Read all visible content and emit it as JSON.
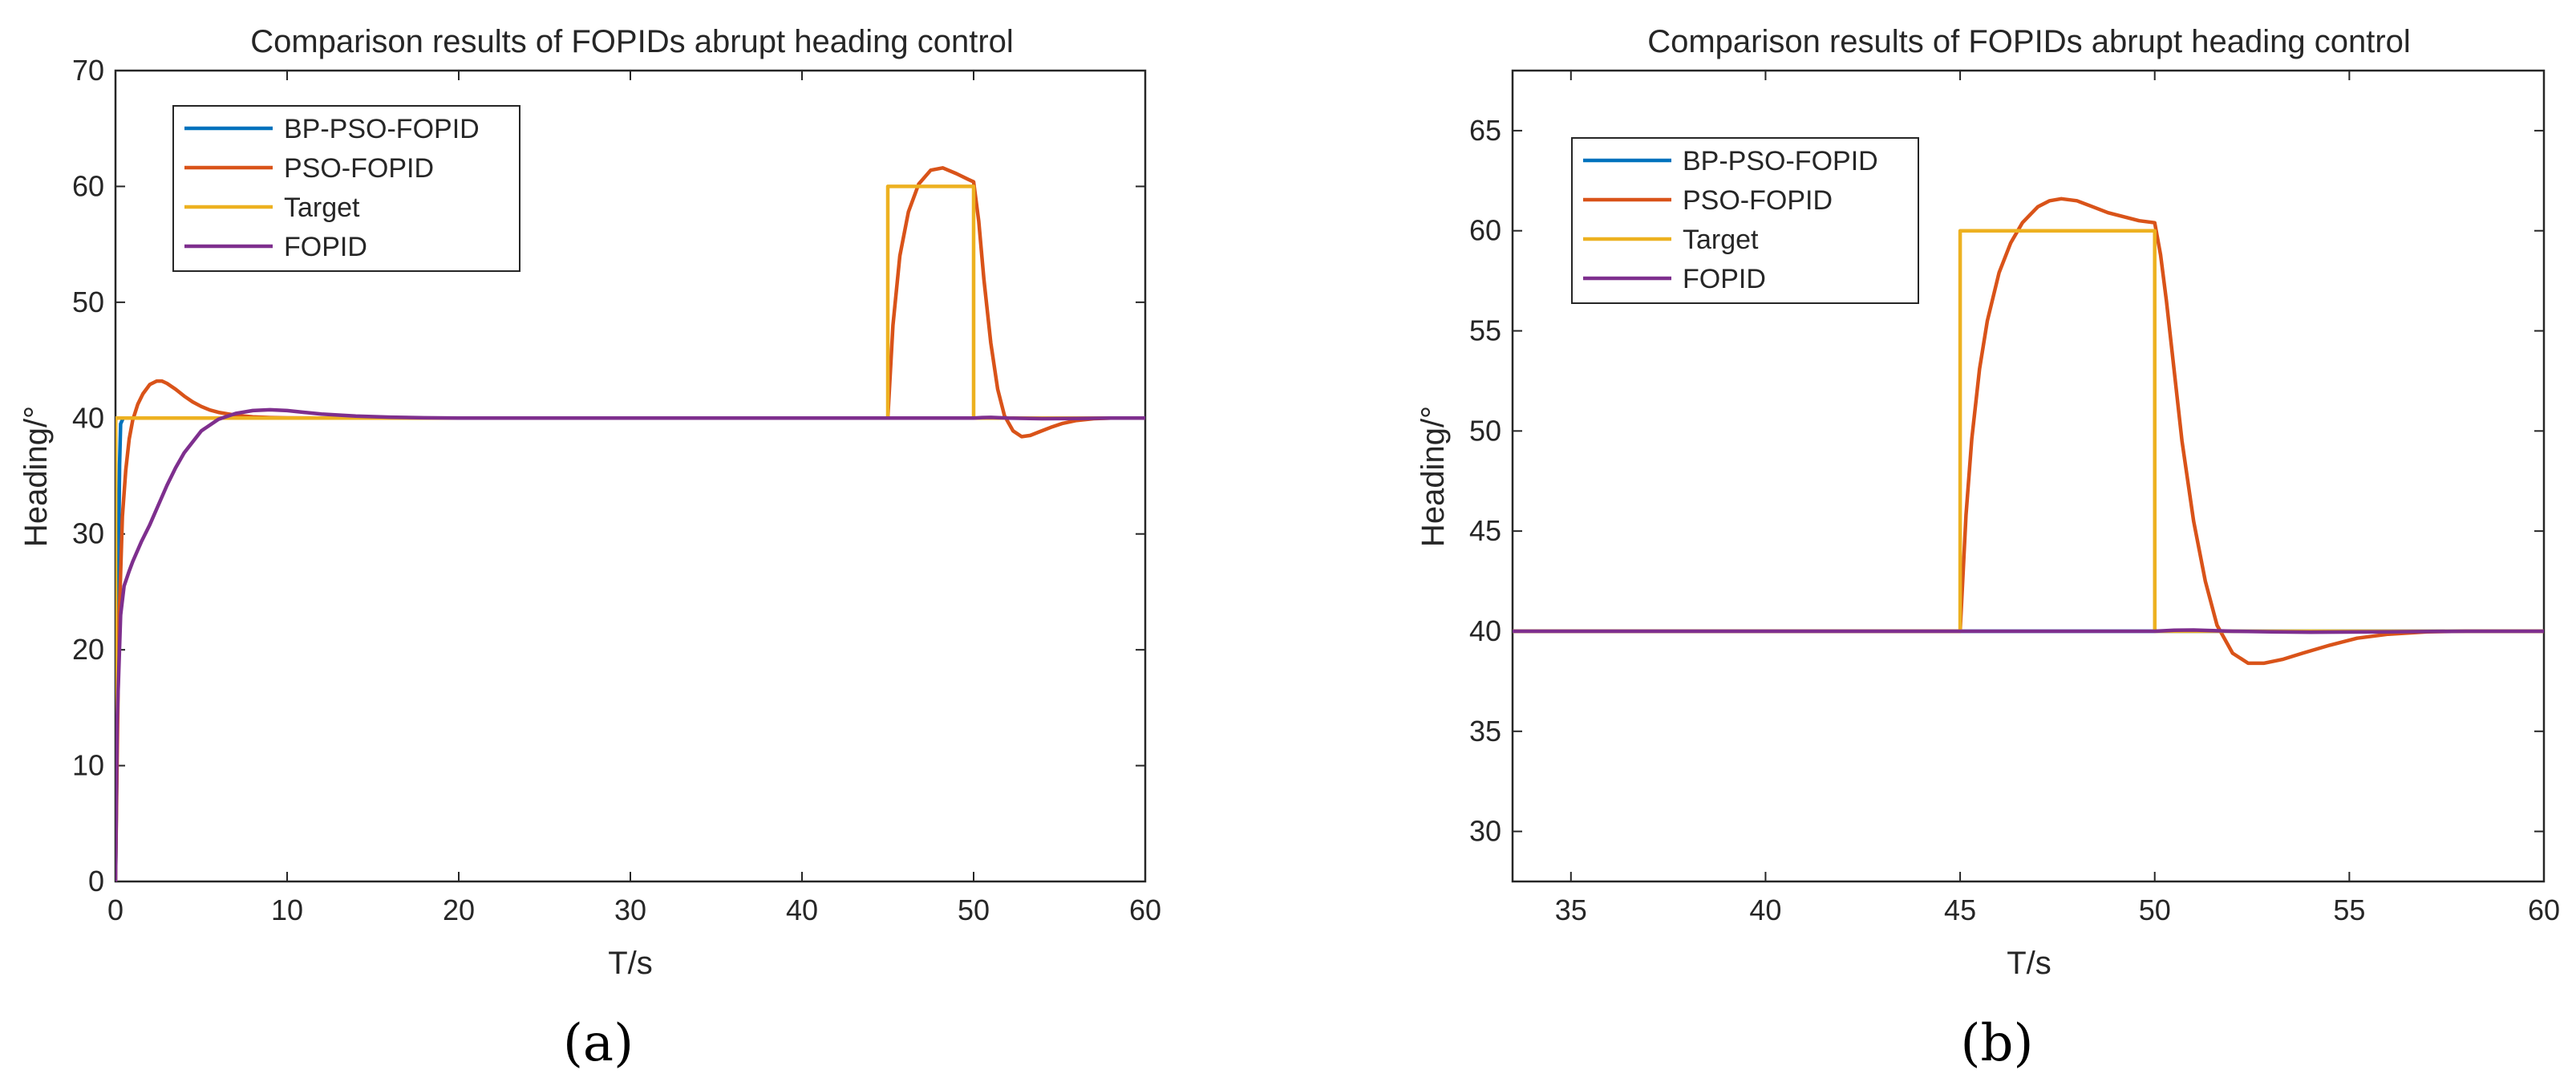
{
  "chart_data": [
    {
      "type": "line",
      "panel_label": "(a)",
      "title": "Comparison results of FOPIDs abrupt heading control",
      "xlabel": "T/s",
      "ylabel": "Heading/°",
      "xlim": [
        0,
        60
      ],
      "ylim": [
        0,
        70
      ],
      "xticks": [
        0,
        10,
        20,
        30,
        40,
        50,
        60
      ],
      "yticks": [
        0,
        10,
        20,
        30,
        40,
        50,
        60,
        70
      ],
      "grid": false,
      "legend_position": "top-left",
      "series": [
        {
          "name": "BP-PSO-FOPID",
          "color": "#0072BD",
          "x": [
            0,
            0.08,
            0.16,
            0.24,
            0.3,
            0.45,
            60
          ],
          "y": [
            0,
            10,
            25,
            36,
            39.5,
            40,
            40
          ]
        },
        {
          "name": "PSO-FOPID",
          "color": "#D95319",
          "x": [
            0,
            0.2,
            0.4,
            0.6,
            0.8,
            1.0,
            1.3,
            1.6,
            2.0,
            2.4,
            2.7,
            3.0,
            3.5,
            4.0,
            4.5,
            5.0,
            5.5,
            6.0,
            7,
            8,
            9,
            10,
            12,
            15,
            20,
            25,
            30,
            35,
            40,
            44.9,
            45,
            45.3,
            45.7,
            46.2,
            46.8,
            47.5,
            48.2,
            49.0,
            49.7,
            50,
            50.3,
            50.6,
            51.0,
            51.4,
            51.8,
            52.3,
            52.8,
            53.3,
            53.8,
            54.5,
            55.2,
            56,
            57,
            58,
            59,
            60
          ],
          "y": [
            0,
            22,
            31.5,
            35.5,
            38.2,
            39.8,
            41.2,
            42.1,
            42.9,
            43.2,
            43.2,
            43,
            42.5,
            41.9,
            41.4,
            41,
            40.7,
            40.5,
            40.25,
            40.1,
            40.05,
            40.02,
            40,
            40,
            40,
            40,
            40,
            40,
            40,
            40,
            40,
            48,
            54,
            57.8,
            60.2,
            61.4,
            61.6,
            61.1,
            60.6,
            60.4,
            57,
            52,
            46.5,
            42.5,
            40.2,
            38.9,
            38.4,
            38.5,
            38.8,
            39.2,
            39.55,
            39.8,
            39.95,
            40,
            40,
            40
          ]
        },
        {
          "name": "Target",
          "color": "#EDB120",
          "x": [
            0,
            0.01,
            45,
            45.001,
            50,
            50.001,
            60
          ],
          "y": [
            0,
            40,
            40,
            60,
            60,
            40,
            40
          ]
        },
        {
          "name": "FOPID",
          "color": "#7E2F8E",
          "x": [
            0,
            0.1,
            0.3,
            0.5,
            0.8,
            1.0,
            1.5,
            2.0,
            2.5,
            3.0,
            3.5,
            4.0,
            5.0,
            6.0,
            7.0,
            8.0,
            9.0,
            10.0,
            11.0,
            12.0,
            14.0,
            16.0,
            18.0,
            20.0,
            25.0,
            30.0,
            40.0,
            50.0,
            50.5,
            51,
            52,
            54,
            56,
            58,
            60
          ],
          "y": [
            0,
            14,
            23,
            25.5,
            26.8,
            27.6,
            29.3,
            30.8,
            32.5,
            34.2,
            35.7,
            37,
            38.9,
            39.9,
            40.4,
            40.65,
            40.72,
            40.65,
            40.5,
            40.35,
            40.18,
            40.08,
            40.03,
            40,
            40,
            40,
            40,
            40,
            40.05,
            40.06,
            40,
            39.95,
            39.97,
            40,
            40
          ]
        }
      ]
    },
    {
      "type": "line",
      "panel_label": "(b)",
      "title": "Comparison results of FOPIDs abrupt heading control",
      "xlabel": "T/s",
      "ylabel": "Heading/°",
      "xlim": [
        33.5,
        60
      ],
      "ylim": [
        27.5,
        68
      ],
      "xticks": [
        35,
        40,
        45,
        50,
        55,
        60
      ],
      "yticks": [
        30,
        35,
        40,
        45,
        50,
        55,
        60,
        65
      ],
      "grid": false,
      "legend_position": "top-left",
      "series": [
        {
          "name": "BP-PSO-FOPID",
          "color": "#0072BD",
          "x": [
            33.5,
            60
          ],
          "y": [
            40,
            40
          ]
        },
        {
          "name": "PSO-FOPID",
          "color": "#D95319",
          "x": [
            33.5,
            44.95,
            45,
            45.15,
            45.3,
            45.5,
            45.7,
            46.0,
            46.3,
            46.6,
            47.0,
            47.3,
            47.6,
            48.0,
            48.4,
            48.8,
            49.2,
            49.6,
            50,
            50.15,
            50.3,
            50.5,
            50.7,
            51.0,
            51.3,
            51.6,
            52.0,
            52.4,
            52.8,
            53.3,
            53.8,
            54.5,
            55.2,
            56,
            57,
            58,
            60
          ],
          "y": [
            40,
            40,
            40,
            45.8,
            49.6,
            53.1,
            55.5,
            57.9,
            59.4,
            60.4,
            61.2,
            61.5,
            61.6,
            61.5,
            61.2,
            60.9,
            60.7,
            60.5,
            60.4,
            58.8,
            56.5,
            53,
            49.5,
            45.5,
            42.5,
            40.3,
            38.9,
            38.4,
            38.4,
            38.6,
            38.9,
            39.3,
            39.65,
            39.85,
            39.97,
            40,
            40
          ]
        },
        {
          "name": "Target",
          "color": "#EDB120",
          "x": [
            33.5,
            45,
            45.001,
            50,
            50.001,
            60
          ],
          "y": [
            40,
            40,
            60,
            60,
            40,
            40
          ]
        },
        {
          "name": "FOPID",
          "color": "#7E2F8E",
          "x": [
            33.5,
            50,
            50.5,
            51,
            52,
            53,
            54,
            56,
            58,
            60
          ],
          "y": [
            40,
            40,
            40.05,
            40.06,
            40,
            39.97,
            39.95,
            39.97,
            40,
            40
          ]
        }
      ]
    }
  ]
}
